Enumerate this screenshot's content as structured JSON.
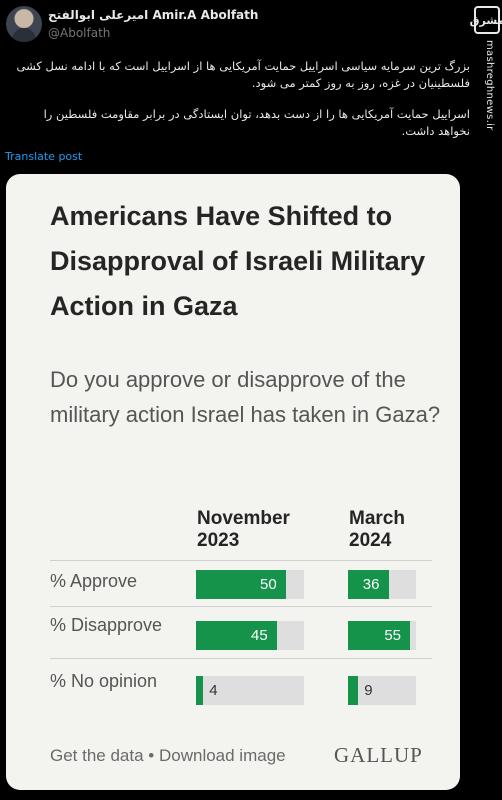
{
  "author": {
    "name_fa": "امیرعلی ابوالفتح",
    "name_en": "Amir.A Abolfath",
    "handle": "@Abolfath"
  },
  "watermark": {
    "logo_text": "مشرق",
    "url": "mashreghnews.ir"
  },
  "tweet": {
    "paragraph1": "بزرگ ترین سرمایه سیاسی اسراییل حمایت آمریکایی ها از اسراییل است که با ادامه نسل کشی فلسطینیان در غزه، روز به روز کمتر می شود.",
    "paragraph2": "اسراییل حمایت آمریکایی ها را از دست بدهد، توان ایستادگی در برابر مقاومت فلسطین را نخواهد داشت.",
    "translate_label": "Translate post"
  },
  "card": {
    "title": "Americans Have Shifted to Disapproval of Israeli Military Action in Gaza",
    "question": "Do you approve or disapprove of the military action Israel has taken in Gaza?",
    "footer_get_data": "Get the data",
    "footer_sep": " • ",
    "footer_download": "Download image",
    "brand": "GALLUP"
  },
  "chart_data": {
    "type": "bar",
    "title": "Americans Have Shifted to Disapproval of Israeli Military Action in Gaza",
    "subtitle": "Do you approve or disapprove of the military action Israel has taken in Gaza?",
    "columns": [
      "November\n2023",
      "March\n2024"
    ],
    "categories": [
      "% Approve",
      "% Disapprove",
      "% No opinion"
    ],
    "series": [
      {
        "name": "November 2023",
        "values": [
          50,
          45,
          4
        ]
      },
      {
        "name": "March 2024",
        "values": [
          36,
          55,
          9
        ]
      }
    ],
    "ylim": [
      0,
      100
    ],
    "colors": {
      "fill": "#16934a",
      "track": "#dedede"
    }
  }
}
